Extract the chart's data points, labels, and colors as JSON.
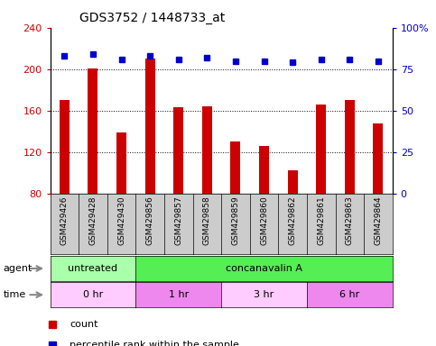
{
  "title": "GDS3752 / 1448733_at",
  "samples": [
    "GSM429426",
    "GSM429428",
    "GSM429430",
    "GSM429856",
    "GSM429857",
    "GSM429858",
    "GSM429859",
    "GSM429860",
    "GSM429862",
    "GSM429861",
    "GSM429863",
    "GSM429864"
  ],
  "bar_values": [
    170,
    201,
    139,
    210,
    163,
    164,
    130,
    126,
    103,
    166,
    170,
    148
  ],
  "dot_values": [
    83,
    84,
    81,
    83,
    81,
    82,
    80,
    80,
    79,
    81,
    81,
    80
  ],
  "bar_color": "#cc0000",
  "dot_color": "#0000cc",
  "ylim_left": [
    80,
    240
  ],
  "ylim_right": [
    0,
    100
  ],
  "yticks_left": [
    80,
    120,
    160,
    200,
    240
  ],
  "yticks_right": [
    0,
    25,
    50,
    75,
    100
  ],
  "agent_groups": [
    {
      "label": "untreated",
      "start": 0,
      "end": 3,
      "color": "#aaffaa"
    },
    {
      "label": "concanavalin A",
      "start": 3,
      "end": 12,
      "color": "#55ee55"
    }
  ],
  "time_groups": [
    {
      "label": "0 hr",
      "start": 0,
      "end": 3,
      "color": "#ffccff"
    },
    {
      "label": "1 hr",
      "start": 3,
      "end": 6,
      "color": "#ee88ee"
    },
    {
      "label": "3 hr",
      "start": 6,
      "end": 9,
      "color": "#ffccff"
    },
    {
      "label": "6 hr",
      "start": 9,
      "end": 12,
      "color": "#ee88ee"
    }
  ],
  "bg_color": "#ffffff",
  "tick_color_left": "#cc0000",
  "tick_color_right": "#0000cc",
  "bar_width": 0.35,
  "label_area_color": "#cccccc",
  "xlim": [
    -0.5,
    11.5
  ]
}
